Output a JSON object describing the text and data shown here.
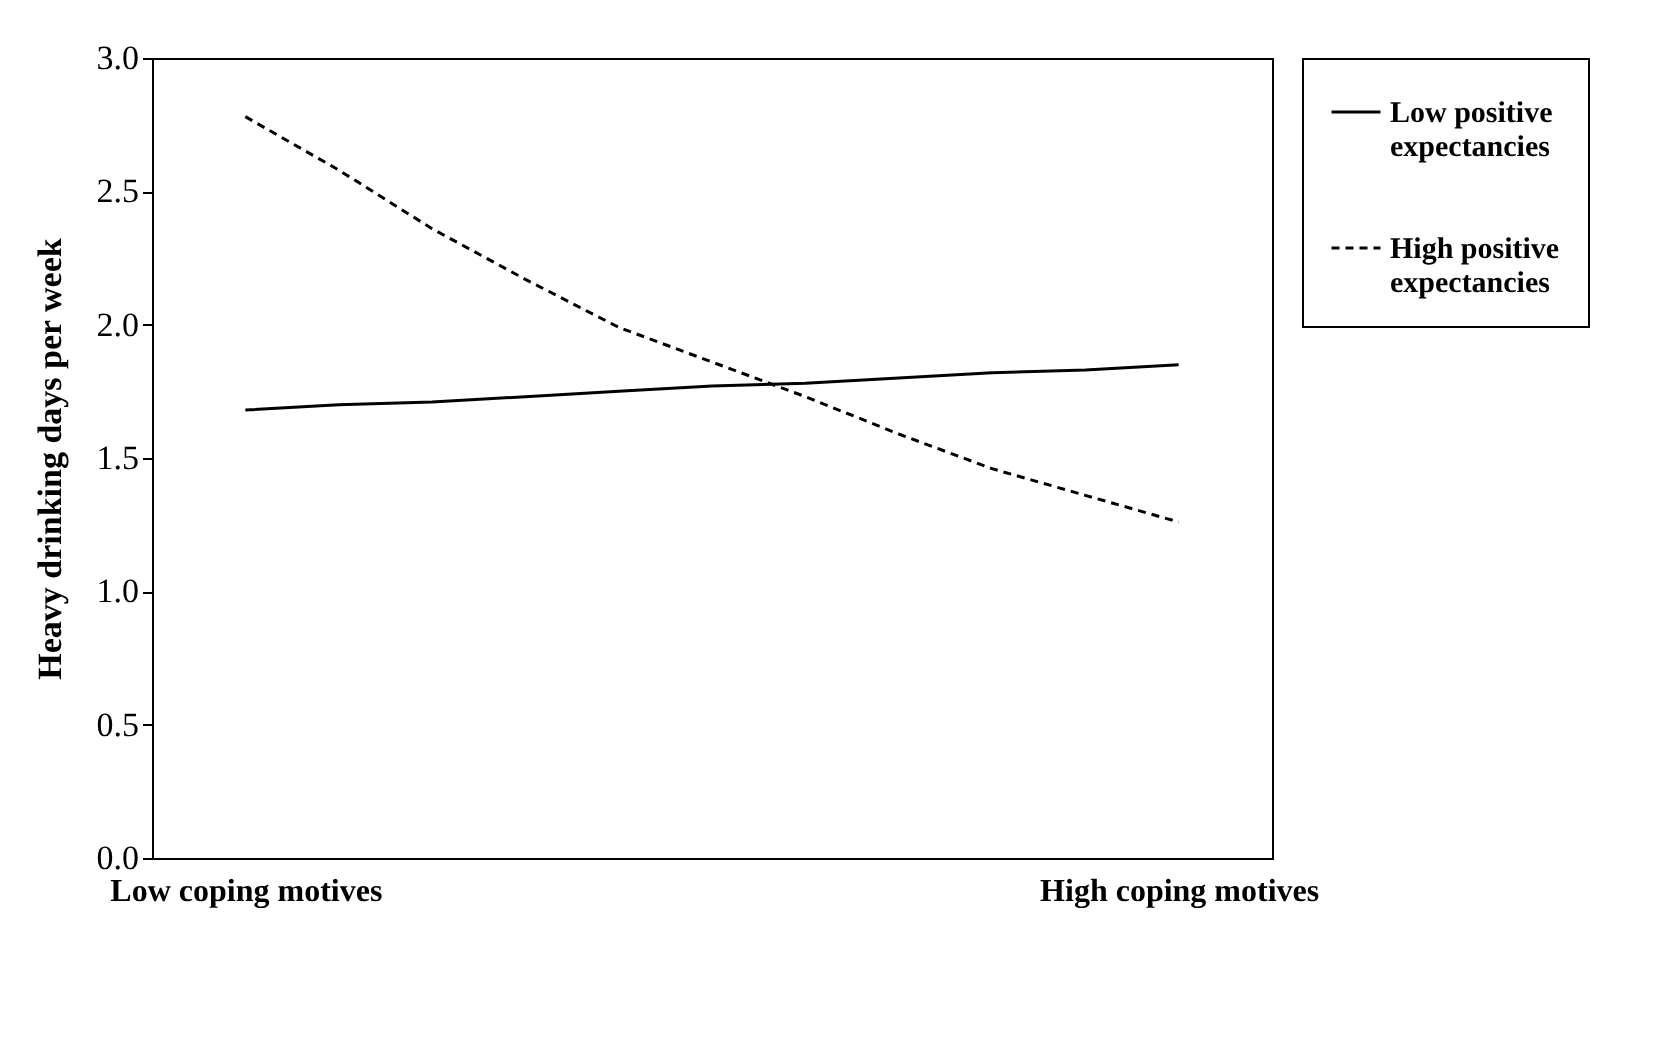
{
  "chart_data": {
    "type": "line",
    "ylabel": "Heavy drinking days per week",
    "categories": [
      "Low coping motives",
      null,
      null,
      null,
      null,
      null,
      null,
      null,
      null,
      null,
      "High coping motives"
    ],
    "ylim": [
      0,
      3
    ],
    "yticks": [
      {
        "value": 0,
        "label": "0.0"
      },
      {
        "value": 0.5,
        "label": "0.5"
      },
      {
        "value": 1,
        "label": "1.0"
      },
      {
        "value": 1.5,
        "label": "1.5"
      },
      {
        "value": 2,
        "label": "2.0"
      },
      {
        "value": 2.5,
        "label": "2.5"
      },
      {
        "value": 3,
        "label": "3.0"
      }
    ],
    "series": [
      {
        "name": "Low positive expectancies",
        "color": "#000000",
        "line_style": "solid",
        "values": [
          1.68,
          1.7,
          1.71,
          1.73,
          1.75,
          1.77,
          1.78,
          1.8,
          1.82,
          1.83,
          1.85
        ]
      },
      {
        "name": "High positive expectancies",
        "color": "#000000",
        "line_style": "dashed",
        "values": [
          2.78,
          2.58,
          2.36,
          2.17,
          1.99,
          1.86,
          1.73,
          1.59,
          1.46,
          1.36,
          1.26
        ]
      }
    ],
    "legend": "right",
    "grid": false,
    "marker": "none"
  }
}
